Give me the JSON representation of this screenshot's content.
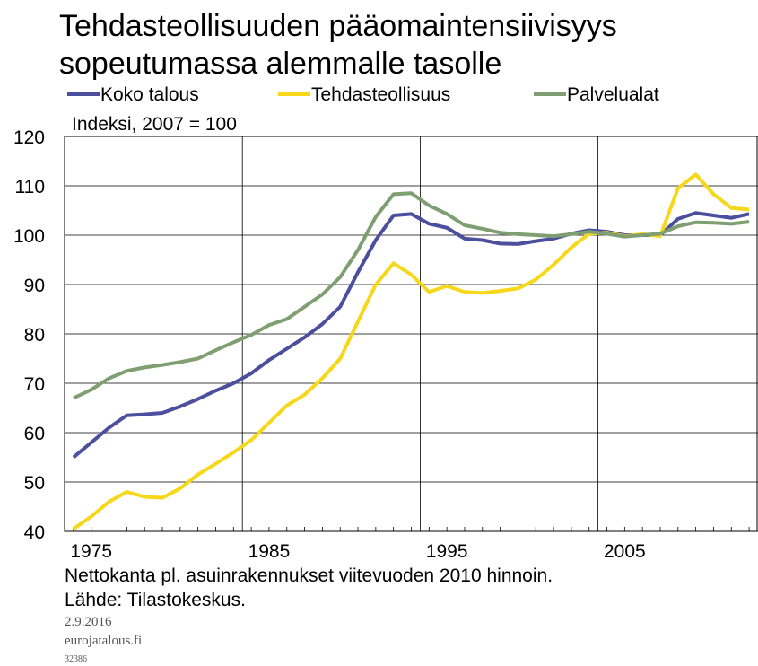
{
  "chart_data": {
    "type": "line",
    "title_lines": [
      "Tehdasteollisuuden pääomaintensiivisyys",
      "sopeutumassa alemmalle tasolle"
    ],
    "subtitle": "Indeksi, 2007 = 100",
    "notes": [
      "Nettokanta pl. asuinrakennukset viitevuoden  2010 hinnoin.",
      "Lähde: Tilastokeskus."
    ],
    "date": "2.9.2016",
    "source_site": "eurojatalous.fi",
    "code": "32386",
    "x": [
      1974,
      1975,
      1976,
      1977,
      1978,
      1979,
      1980,
      1981,
      1982,
      1983,
      1984,
      1985,
      1986,
      1987,
      1988,
      1989,
      1990,
      1991,
      1992,
      1993,
      1994,
      1995,
      1996,
      1997,
      1998,
      1999,
      2000,
      2001,
      2002,
      2003,
      2004,
      2005,
      2006,
      2007,
      2008,
      2009,
      2010,
      2011,
      2012
    ],
    "series": [
      {
        "name": "Koko talous",
        "color": "#4b4f9e",
        "values": [
          55,
          58,
          61,
          63.5,
          63.7,
          64,
          65.3,
          66.8,
          68.5,
          70,
          72,
          74.7,
          77,
          79.3,
          82,
          85.5,
          92.5,
          99,
          104,
          104.3,
          102.3,
          101.5,
          99.3,
          99,
          98.3,
          98.2,
          98.8,
          99.3,
          100.3,
          101,
          100.7,
          100,
          100,
          100,
          103.3,
          104.5,
          104,
          103.5,
          104.3
        ]
      },
      {
        "name": "Tehdasteollisuus",
        "color": "#f6d719",
        "values": [
          40.5,
          43,
          46,
          48,
          47,
          46.8,
          48.7,
          51.5,
          53.7,
          56,
          58.5,
          62,
          65.5,
          67.7,
          71,
          75,
          82.5,
          90,
          94.3,
          92,
          88.5,
          89.7,
          88.5,
          88.3,
          88.7,
          89.2,
          91,
          94,
          97.5,
          100.3,
          100.5,
          99.8,
          100.2,
          99.8,
          109.5,
          112.3,
          108.3,
          105.5,
          105.2
        ]
      },
      {
        "name": "Palvelualat",
        "color": "#7f9f72",
        "values": [
          67,
          68.7,
          71,
          72.5,
          73.2,
          73.7,
          74.3,
          75,
          76.7,
          78.3,
          79.8,
          81.8,
          83,
          85.5,
          88,
          91.5,
          97,
          103.7,
          108.3,
          108.5,
          106,
          104.3,
          102,
          101.3,
          100.5,
          100.2,
          100,
          99.8,
          100.2,
          100.7,
          100.3,
          99.7,
          100,
          100.3,
          101.8,
          102.6,
          102.5,
          102.3,
          102.7
        ]
      }
    ],
    "xlim": [
      1973.5,
      2012.5
    ],
    "xticks": [
      1975,
      1985,
      1995,
      2005
    ],
    "xgrid": [
      1983.5,
      1993.5,
      2003.5
    ],
    "ylim": [
      40,
      120
    ],
    "yticks": [
      40,
      50,
      60,
      70,
      80,
      90,
      100,
      110,
      120
    ],
    "grid": true
  }
}
